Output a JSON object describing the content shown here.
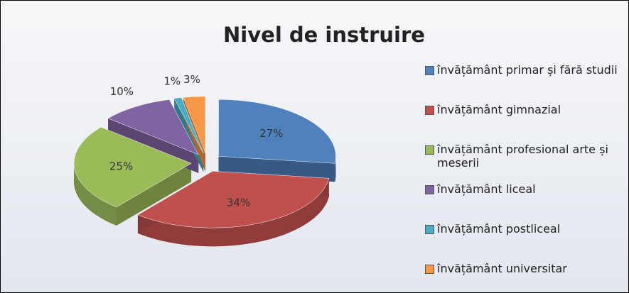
{
  "chart_data": {
    "type": "pie",
    "title": "Nivel de instruire",
    "categories": [
      "învățământ primar și fără studii",
      "învățământ gimnazial",
      "învățământ profesional arte și meserii",
      "învățământ liceal",
      "învățământ postliceal",
      "învățământ universitar"
    ],
    "values": [
      27,
      34,
      25,
      10,
      1,
      3
    ],
    "value_labels": [
      "27%",
      "34%",
      "25%",
      "10%",
      "1%",
      "3%"
    ],
    "colors": [
      "#4f81bd",
      "#c0504d",
      "#9bbb59",
      "#8064a2",
      "#4bacc6",
      "#f79646"
    ],
    "legend": "right"
  }
}
